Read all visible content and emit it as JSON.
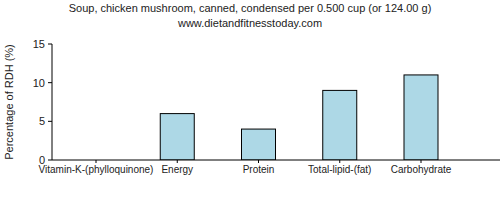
{
  "chart_data": {
    "type": "bar",
    "title": "Soup, chicken mushroom, canned, condensed per 0.500 cup (or 124.00 g)",
    "subtitle": "www.dietandfitnesstoday.com",
    "y_label": "Percentage of RDH (%)",
    "categories": [
      "Vitamin-K-(phylloquinone)",
      "Energy",
      "Protein",
      "Total-lipid-(fat)",
      "Carbohydrate"
    ],
    "values": [
      0,
      6,
      4,
      9,
      11
    ],
    "color": "#add8e6",
    "ylim": [
      0,
      15
    ],
    "yticks": [
      0,
      5,
      10,
      15
    ],
    "grid": false
  }
}
